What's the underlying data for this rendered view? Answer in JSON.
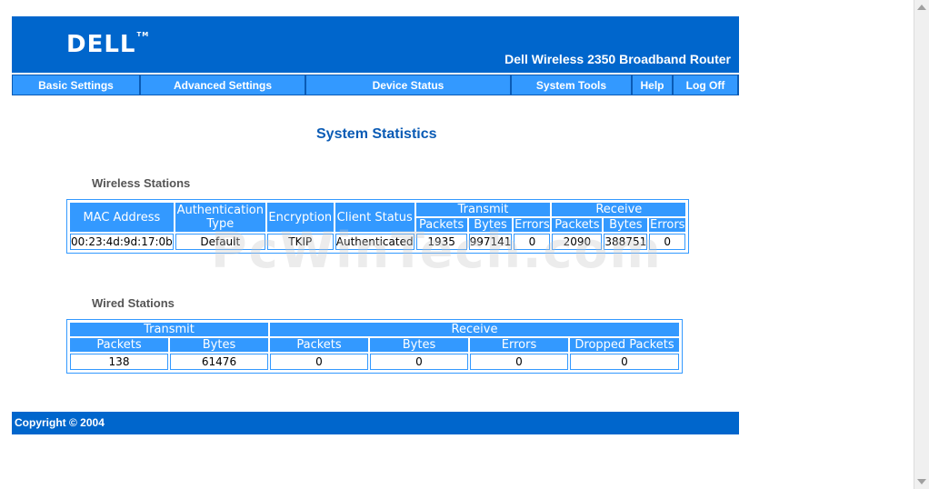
{
  "header": {
    "logo_text": "DELL",
    "logo_tm": "TM",
    "product_title": "Dell Wireless 2350 Broadband Router"
  },
  "nav": {
    "items": [
      {
        "label": "Basic Settings"
      },
      {
        "label": "Advanced Settings"
      },
      {
        "label": "Device Status"
      },
      {
        "label": "System Tools"
      },
      {
        "label": "Help"
      },
      {
        "label": "Log Off"
      }
    ]
  },
  "page_title": "System Statistics",
  "wireless": {
    "section_title": "Wireless Stations",
    "headers": {
      "mac": "MAC Address",
      "auth": "Authentication Type",
      "enc": "Encryption",
      "client": "Client Status",
      "transmit": "Transmit",
      "receive": "Receive",
      "packets": "Packets",
      "bytes": "Bytes",
      "errors": "Errors"
    },
    "rows": [
      {
        "mac": "00:23:4d:9d:17:0b",
        "auth": "Default",
        "enc": "TKIP",
        "client": "Authenticated",
        "tx_packets": "1935",
        "tx_bytes": "997141",
        "tx_errors": "0",
        "rx_packets": "2090",
        "rx_bytes": "388751",
        "rx_errors": "0"
      }
    ]
  },
  "wired": {
    "section_title": "Wired Stations",
    "headers": {
      "transmit": "Transmit",
      "receive": "Receive",
      "packets": "Packets",
      "bytes": "Bytes",
      "errors": "Errors",
      "dropped": "Dropped Packets"
    },
    "row": {
      "tx_packets": "138",
      "tx_bytes": "61476",
      "rx_packets": "0",
      "rx_bytes": "0",
      "rx_errors": "0",
      "rx_dropped": "0"
    }
  },
  "watermark": "PcWinTech.com",
  "footer": {
    "copyright": "Copyright © 2004"
  },
  "colors": {
    "brand_blue": "#0066cc",
    "nav_blue": "#3399ff",
    "title_blue": "#0a5bb5"
  }
}
